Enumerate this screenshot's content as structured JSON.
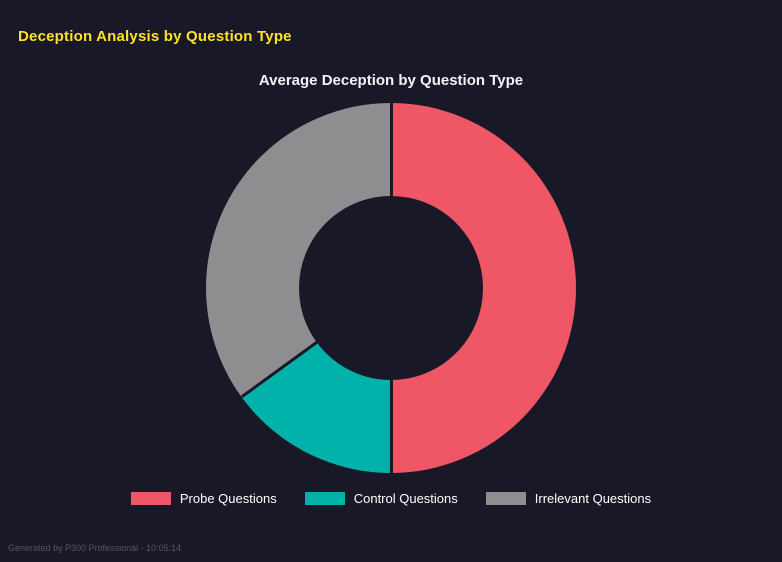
{
  "header": {
    "title": "Deception Analysis by Question Type",
    "accent_color": "#ffe12b"
  },
  "chart": {
    "title": "Average Deception by Question Type"
  },
  "chart_data": {
    "type": "pie",
    "donut": true,
    "hole_ratio": 0.5,
    "title": "Average Deception by Question Type",
    "legend_position": "bottom",
    "start_angle_deg": 0,
    "direction": "clockwise",
    "categories": [
      "Probe Questions",
      "Control Questions",
      "Irrelevant Questions"
    ],
    "values_percent": [
      50,
      15,
      35
    ],
    "colors": [
      "#ef5666",
      "#00b2a9",
      "#8e8e90"
    ],
    "background_color": "#181826"
  },
  "footer": {
    "text": "Generated by P300 Professional - 10:05:14"
  }
}
